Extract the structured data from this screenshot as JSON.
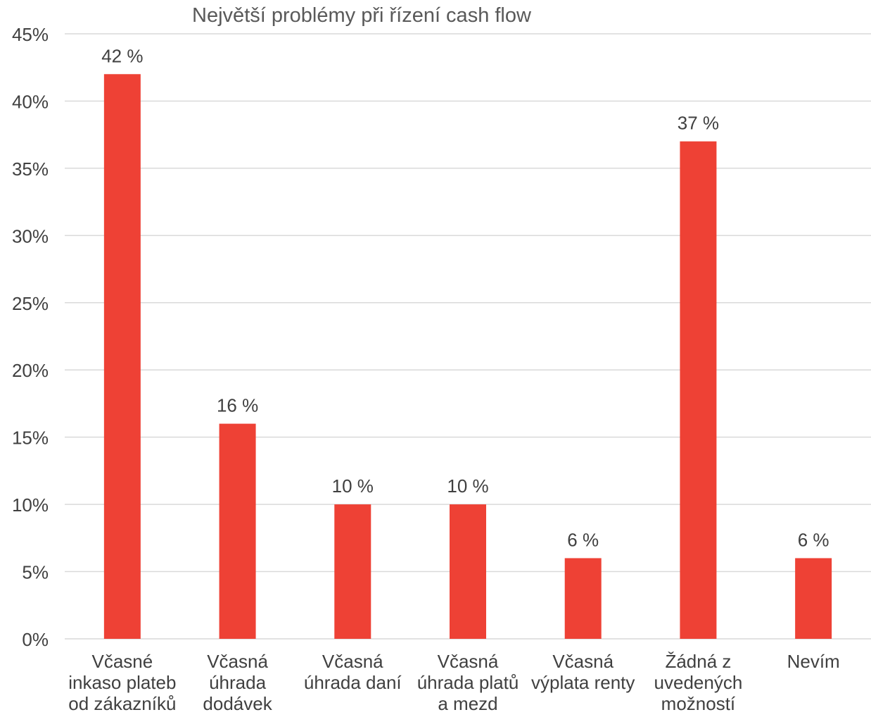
{
  "chart_data": {
    "type": "bar",
    "title": "Největší problémy při řízení cash flow",
    "xlabel": "",
    "ylabel": "",
    "categories": [
      [
        "Včasné",
        "inkaso plateb",
        "od zákazníků"
      ],
      [
        "Včasná",
        "úhrada",
        "dodávek"
      ],
      [
        "Včasná",
        "úhrada daní"
      ],
      [
        "Včasná",
        "úhrada platů",
        "a mezd"
      ],
      [
        "Včasná",
        "výplata renty"
      ],
      [
        "Žádná z",
        "uvedených",
        "možností"
      ],
      [
        "Nevím"
      ]
    ],
    "values": [
      42,
      16,
      10,
      10,
      6,
      37,
      6
    ],
    "data_labels": [
      "42 %",
      "16 %",
      "10 %",
      "10 %",
      "6 %",
      "37 %",
      "6 %"
    ],
    "ylim": [
      0,
      45
    ],
    "yticks": [
      0,
      5,
      10,
      15,
      20,
      25,
      30,
      35,
      40,
      45
    ],
    "ytick_labels": [
      "0%",
      "5%",
      "10%",
      "15%",
      "20%",
      "25%",
      "30%",
      "35%",
      "40%",
      "45%"
    ],
    "grid": true,
    "legend": "none",
    "colors": {
      "bar": "#ee4135",
      "grid": "#d9d9d9",
      "text": "#404040",
      "title": "#595959"
    }
  }
}
